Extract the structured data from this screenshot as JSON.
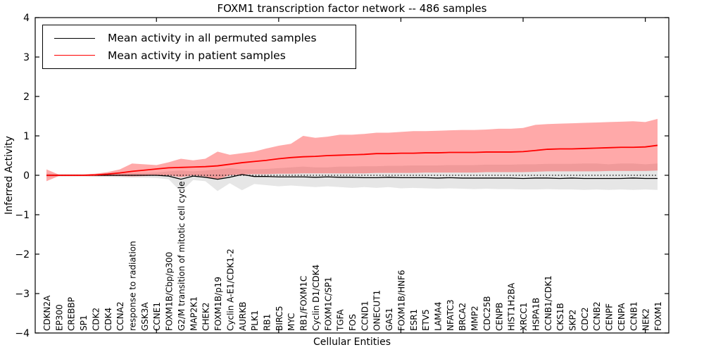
{
  "chart_data": {
    "type": "line",
    "title": "FOXM1 transcription factor network -- 486 samples",
    "xlabel": "Cellular Entities",
    "ylabel": "Inferred Activity",
    "ylim": [
      -4,
      4
    ],
    "ytick_step": 1,
    "xticks_at": [
      10,
      20,
      30,
      40,
      50
    ],
    "grid": false,
    "legend_position": "upper left",
    "zero_line": {
      "style": "dotted",
      "color": "#000000",
      "y": 0
    },
    "categories": [
      "CDKN2A",
      "EP300",
      "CREBBP",
      "SP1",
      "CDK2",
      "CDK4",
      "CCNA2",
      "response to radiation",
      "GSK3A",
      "CCNE1",
      "FOXM1B/Cbp/p300",
      "G2/M transition of mitotic cell cycle",
      "MAP2K1",
      "CHEK2",
      "FOXM1B/p19",
      "Cyclin A-E1/CDK1-2",
      "AURKB",
      "PLK1",
      "RB1",
      "BIRC5",
      "MYC",
      "RB1/FOXM1C",
      "Cyclin D1/CDK4",
      "FOXM1C/SP1",
      "TGFA",
      "FOS",
      "CCND1",
      "ONECUT1",
      "GAS1",
      "FOXM1B/HNF6",
      "ESR1",
      "ETV5",
      "LAMA4",
      "NFATC3",
      "BRCA2",
      "MMP2",
      "CDC25B",
      "CENPB",
      "HIST1H2BA",
      "XRCC1",
      "HSPA1B",
      "CCNB1/CDK1",
      "CKS1B",
      "SKP2",
      "CDC2",
      "CCNB2",
      "CENPF",
      "CENPA",
      "CCNB1",
      "NEK2",
      "FOXM1"
    ],
    "series": [
      {
        "name": "Mean activity in all permuted samples",
        "color": "#000000",
        "line_width": 1.3,
        "values": [
          0,
          0,
          0,
          0,
          0,
          0,
          0,
          0,
          0,
          0,
          -0.02,
          -0.1,
          -0.02,
          -0.05,
          -0.1,
          -0.05,
          0.02,
          -0.03,
          -0.03,
          -0.04,
          -0.04,
          -0.04,
          -0.05,
          -0.04,
          -0.05,
          -0.05,
          -0.06,
          -0.06,
          -0.05,
          -0.06,
          -0.06,
          -0.06,
          -0.07,
          -0.06,
          -0.07,
          -0.07,
          -0.07,
          -0.07,
          -0.07,
          -0.08,
          -0.07,
          -0.07,
          -0.08,
          -0.07,
          -0.08,
          -0.08,
          -0.08,
          -0.08,
          -0.07,
          -0.08,
          -0.08
        ],
        "band": {
          "color": "#e6e6e6",
          "upper": [
            0.05,
            0.03,
            0.03,
            0.03,
            0.03,
            0.04,
            0.05,
            0.06,
            0.06,
            0.07,
            0.1,
            0.12,
            0.1,
            0.12,
            0.15,
            0.18,
            0.15,
            0.15,
            0.16,
            0.18,
            0.2,
            0.22,
            0.2,
            0.2,
            0.22,
            0.22,
            0.23,
            0.23,
            0.24,
            0.24,
            0.25,
            0.25,
            0.25,
            0.26,
            0.26,
            0.26,
            0.27,
            0.27,
            0.27,
            0.28,
            0.28,
            0.29,
            0.29,
            0.29,
            0.3,
            0.3,
            0.28,
            0.3,
            0.3,
            0.28,
            0.3
          ],
          "lower": [
            -0.05,
            -0.03,
            -0.03,
            -0.03,
            -0.04,
            -0.04,
            -0.05,
            -0.06,
            -0.06,
            -0.07,
            -0.1,
            -0.42,
            -0.12,
            -0.15,
            -0.4,
            -0.2,
            -0.38,
            -0.22,
            -0.25,
            -0.28,
            -0.26,
            -0.28,
            -0.3,
            -0.28,
            -0.3,
            -0.32,
            -0.3,
            -0.32,
            -0.3,
            -0.33,
            -0.32,
            -0.33,
            -0.34,
            -0.33,
            -0.34,
            -0.35,
            -0.34,
            -0.35,
            -0.35,
            -0.36,
            -0.36,
            -0.35,
            -0.36,
            -0.36,
            -0.37,
            -0.36,
            -0.37,
            -0.36,
            -0.37,
            -0.36,
            -0.37
          ]
        }
      },
      {
        "name": "Mean activity in patient samples",
        "color": "#ff0000",
        "line_width": 1.8,
        "values": [
          0.0,
          0.0,
          0.0,
          0.0,
          0.01,
          0.03,
          0.06,
          0.1,
          0.13,
          0.16,
          0.19,
          0.2,
          0.21,
          0.22,
          0.24,
          0.28,
          0.32,
          0.35,
          0.38,
          0.42,
          0.45,
          0.47,
          0.48,
          0.5,
          0.51,
          0.52,
          0.53,
          0.55,
          0.55,
          0.56,
          0.56,
          0.57,
          0.57,
          0.58,
          0.58,
          0.58,
          0.59,
          0.59,
          0.59,
          0.6,
          0.63,
          0.66,
          0.67,
          0.67,
          0.68,
          0.69,
          0.7,
          0.71,
          0.71,
          0.72,
          0.76
        ],
        "band": {
          "color": "rgba(255,40,40,0.40)",
          "upper": [
            0.15,
            0.02,
            0.02,
            0.02,
            0.04,
            0.08,
            0.15,
            0.3,
            0.28,
            0.26,
            0.33,
            0.42,
            0.38,
            0.42,
            0.6,
            0.52,
            0.56,
            0.6,
            0.68,
            0.75,
            0.8,
            1.0,
            0.95,
            0.98,
            1.03,
            1.03,
            1.05,
            1.08,
            1.08,
            1.1,
            1.12,
            1.12,
            1.13,
            1.14,
            1.15,
            1.15,
            1.16,
            1.18,
            1.18,
            1.2,
            1.28,
            1.3,
            1.31,
            1.32,
            1.33,
            1.34,
            1.35,
            1.36,
            1.37,
            1.35,
            1.43
          ],
          "lower": [
            -0.15,
            -0.02,
            -0.02,
            -0.02,
            -0.02,
            -0.02,
            -0.02,
            -0.03,
            -0.02,
            0.0,
            0.0,
            -0.05,
            0.0,
            -0.03,
            -0.1,
            0.0,
            0.02,
            0.03,
            0.03,
            0.04,
            0.04,
            0.05,
            0.05,
            0.05,
            0.05,
            0.05,
            0.05,
            0.06,
            0.06,
            0.06,
            0.06,
            0.07,
            0.07,
            0.07,
            0.07,
            0.07,
            0.08,
            0.08,
            0.08,
            0.08,
            0.09,
            0.1,
            0.1,
            0.1,
            0.1,
            0.1,
            0.11,
            0.11,
            0.11,
            0.11,
            0.12
          ]
        }
      }
    ]
  }
}
